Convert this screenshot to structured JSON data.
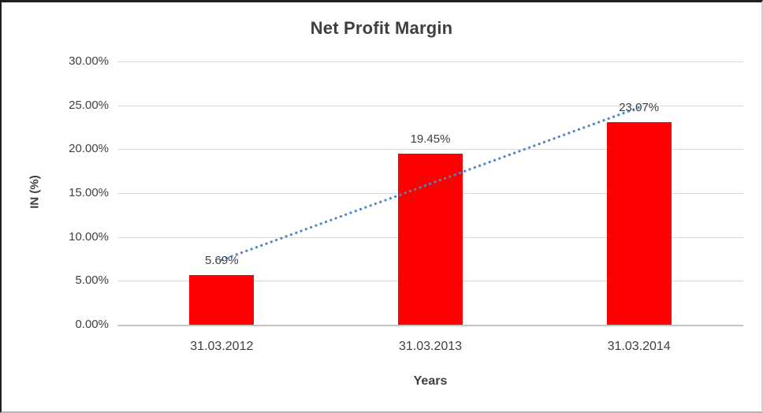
{
  "chart_data": {
    "type": "bar",
    "title": "Net Profit Margin",
    "categories": [
      "31.03.2012",
      "31.03.2013",
      "31.03.2014"
    ],
    "values": [
      5.69,
      19.45,
      23.07
    ],
    "data_labels": [
      "5.69%",
      "19.45%",
      "23.07%"
    ],
    "xlabel": "Years",
    "ylabel": "IN (%)",
    "ylim": [
      0,
      30
    ],
    "ytick_step": 5,
    "ytick_labels": [
      "0.00%",
      "5.00%",
      "10.00%",
      "15.00%",
      "20.00%",
      "25.00%",
      "30.00%"
    ],
    "grid": true,
    "legend": "none",
    "trendline": {
      "type": "linear",
      "style": "dotted"
    }
  },
  "colors": {
    "bar": "#ff0000",
    "trendline": "#4f86c6",
    "gridline": "#d9d9d9",
    "axis_line": "#c6c6c6",
    "text": "#404040",
    "title": "#3f3f3f",
    "background": "#ffffff"
  }
}
